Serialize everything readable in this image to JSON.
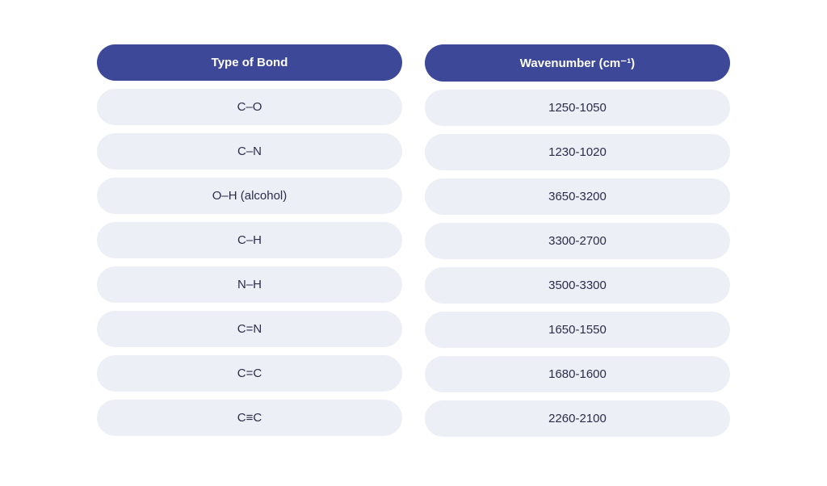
{
  "table": {
    "type": "table",
    "header_bg_color": "#3d4899",
    "header_text_color": "#ffffff",
    "header_fontsize": 15,
    "header_fontweight": 700,
    "cell_bg_color": "#edeff6",
    "cell_text_color": "#2a2d4a",
    "cell_fontsize": 15,
    "cell_fontweight": 400,
    "border_radius": "999px",
    "row_gap": 10,
    "column_gap": 28,
    "cell_padding_y": 14,
    "cell_padding_x": 20,
    "background_color": "#ffffff",
    "columns": [
      {
        "header": "Type of Bond"
      },
      {
        "header": "Wavenumber (cm⁻¹)"
      }
    ],
    "rows": [
      {
        "bond": "C–O",
        "wavenumber": "1250-1050"
      },
      {
        "bond": "C–N",
        "wavenumber": "1230-1020"
      },
      {
        "bond": "O–H (alcohol)",
        "wavenumber": "3650-3200"
      },
      {
        "bond": "C–H",
        "wavenumber": "3300-2700"
      },
      {
        "bond": "N–H",
        "wavenumber": "3500-3300"
      },
      {
        "bond": "C=N",
        "wavenumber": "1650-1550"
      },
      {
        "bond": "C=C",
        "wavenumber": "1680-1600"
      },
      {
        "bond": "C≡C",
        "wavenumber": "2260-2100"
      }
    ]
  }
}
